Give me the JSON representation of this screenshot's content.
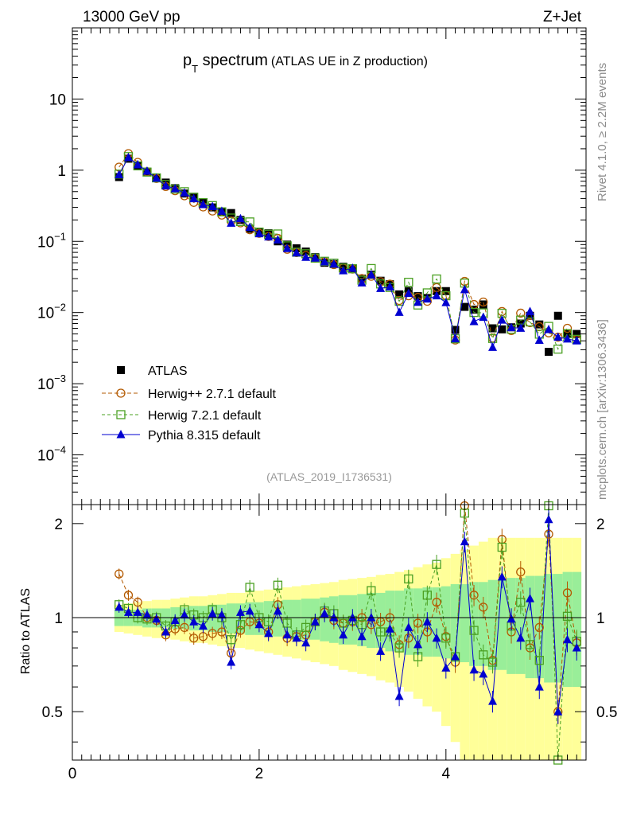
{
  "header": {
    "left": "13000 GeV pp",
    "right": "Z+Jet"
  },
  "title": {
    "main": "p",
    "sub": "T",
    "rest": " spectrum",
    "paren": "(ATLAS UE in Z production)"
  },
  "side": {
    "rivet": "Rivet 4.1.0, ≥ 2.2M events",
    "mcplots": "mcplots.cern.ch [arXiv:1306.3436]"
  },
  "annotation": "(ATLAS_2019_I1736531)",
  "ratio_ylabel": "Ratio to ATLAS",
  "chart_data": {
    "type": "scatter",
    "xlim": [
      0,
      5.5
    ],
    "ylim_main": [
      2e-05,
      100
    ],
    "ylim_ratio": [
      0.35,
      2.3
    ],
    "main_ticks": [
      {
        "value": 10,
        "base": "10",
        "exp": ""
      },
      {
        "value": 1,
        "base": "1",
        "exp": ""
      },
      {
        "value": 0.1,
        "base": "10",
        "exp": "−1"
      },
      {
        "value": 0.01,
        "base": "10",
        "exp": "−2"
      },
      {
        "value": 0.001,
        "base": "10",
        "exp": "−3"
      },
      {
        "value": 0.0001,
        "base": "10",
        "exp": "−4"
      }
    ],
    "ratio_ticks": [
      {
        "value": 0.5,
        "label": "0.5"
      },
      {
        "value": 1,
        "label": "1"
      },
      {
        "value": 2,
        "label": "2"
      }
    ],
    "x_ticks": [
      {
        "value": 0,
        "label": "0"
      },
      {
        "value": 2,
        "label": "2"
      },
      {
        "value": 4,
        "label": "4"
      }
    ],
    "x": [
      0.5,
      0.6,
      0.7,
      0.8,
      0.9,
      1.0,
      1.1,
      1.2,
      1.3,
      1.4,
      1.5,
      1.6,
      1.7,
      1.8,
      1.9,
      2.0,
      2.1,
      2.2,
      2.3,
      2.4,
      2.5,
      2.6,
      2.7,
      2.8,
      2.9,
      3.0,
      3.1,
      3.2,
      3.3,
      3.4,
      3.5,
      3.6,
      3.7,
      3.8,
      3.9,
      4.0,
      4.1,
      4.2,
      4.3,
      4.4,
      4.5,
      4.6,
      4.7,
      4.8,
      4.9,
      5.0,
      5.1,
      5.2,
      5.3,
      5.4
    ],
    "data": [
      0.8,
      1.45,
      1.15,
      0.95,
      0.78,
      0.67,
      0.56,
      0.47,
      0.41,
      0.35,
      0.3,
      0.26,
      0.25,
      0.2,
      0.15,
      0.135,
      0.13,
      0.1,
      0.09,
      0.08,
      0.072,
      0.06,
      0.05,
      0.048,
      0.044,
      0.042,
      0.03,
      0.034,
      0.028,
      0.025,
      0.018,
      0.02,
      0.017,
      0.016,
      0.02,
      0.02,
      0.0057,
      0.012,
      0.011,
      0.013,
      0.006,
      0.0058,
      0.0062,
      0.007,
      0.009,
      0.0068,
      0.0028,
      0.009,
      0.005,
      0.005
    ],
    "band_inner": [
      0.06,
      0.06,
      0.06,
      0.07,
      0.07,
      0.07,
      0.08,
      0.08,
      0.09,
      0.09,
      0.1,
      0.1,
      0.11,
      0.11,
      0.12,
      0.12,
      0.13,
      0.13,
      0.14,
      0.14,
      0.15,
      0.15,
      0.16,
      0.17,
      0.18,
      0.18,
      0.19,
      0.2,
      0.2,
      0.22,
      0.22,
      0.24,
      0.24,
      0.25,
      0.25,
      0.26,
      0.28,
      0.28,
      0.3,
      0.3,
      0.32,
      0.32,
      0.34,
      0.34,
      0.36,
      0.36,
      0.38,
      0.38,
      0.4,
      0.4
    ],
    "band_outer": [
      0.1,
      0.11,
      0.12,
      0.13,
      0.14,
      0.14,
      0.15,
      0.16,
      0.17,
      0.17,
      0.18,
      0.19,
      0.2,
      0.2,
      0.21,
      0.22,
      0.23,
      0.24,
      0.25,
      0.26,
      0.27,
      0.28,
      0.29,
      0.3,
      0.32,
      0.33,
      0.34,
      0.35,
      0.37,
      0.38,
      0.4,
      0.42,
      0.45,
      0.48,
      0.5,
      0.55,
      0.6,
      0.65,
      0.7,
      0.75,
      0.8,
      0.8,
      0.8,
      0.8,
      0.8,
      0.8,
      0.8,
      0.8,
      0.8,
      0.8
    ],
    "series": [
      {
        "name": "ATLAS",
        "marker": "square",
        "color": "#000000",
        "ratio": []
      },
      {
        "name": "Herwig++ 2.7.1 default",
        "marker": "circle",
        "color": "#b35900",
        "ratio": [
          1.38,
          1.18,
          1.12,
          1.0,
          0.98,
          0.88,
          0.92,
          0.93,
          0.86,
          0.87,
          0.89,
          0.9,
          0.77,
          0.91,
          0.97,
          0.96,
          0.9,
          1.1,
          0.86,
          0.87,
          0.88,
          0.97,
          1.04,
          0.98,
          0.96,
          0.97,
          1.0,
          0.95,
          0.97,
          1.0,
          0.82,
          0.86,
          0.96,
          0.9,
          1.12,
          0.87,
          0.72,
          2.28,
          1.18,
          1.08,
          0.73,
          1.78,
          0.9,
          1.4,
          0.8,
          0.93,
          1.85,
          0.5,
          1.2,
          0.83
        ]
      },
      {
        "name": "Herwig 7.2.1 default",
        "marker": "square-open",
        "color": "#4aa022",
        "ratio": [
          1.1,
          1.07,
          1.0,
          0.99,
          1.0,
          0.94,
          0.97,
          1.06,
          1.02,
          1.0,
          1.06,
          1.0,
          0.85,
          0.95,
          1.25,
          1.0,
          0.97,
          1.27,
          0.96,
          0.88,
          0.93,
          0.97,
          1.05,
          1.03,
          0.96,
          0.98,
          0.95,
          1.22,
          0.9,
          0.9,
          0.8,
          1.33,
          0.75,
          1.18,
          1.48,
          0.86,
          0.75,
          2.16,
          0.91,
          0.76,
          0.72,
          1.68,
          0.94,
          1.12,
          0.82,
          0.73,
          2.28,
          0.34,
          1.01,
          0.84
        ]
      },
      {
        "name": "Pythia 8.315 default",
        "marker": "triangle",
        "color": "#0000d0",
        "ratio": [
          1.08,
          1.04,
          1.04,
          1.02,
          0.99,
          0.9,
          0.98,
          1.02,
          0.97,
          0.94,
          1.03,
          1.02,
          0.72,
          1.04,
          1.05,
          0.95,
          0.89,
          1.05,
          0.88,
          0.86,
          0.83,
          0.97,
          1.03,
          1.0,
          0.88,
          1.0,
          0.87,
          1.0,
          0.78,
          0.92,
          0.56,
          0.93,
          0.82,
          0.97,
          0.86,
          0.69,
          0.75,
          1.75,
          0.68,
          0.66,
          0.54,
          1.35,
          0.99,
          0.86,
          1.15,
          0.6,
          2.06,
          0.5,
          0.85,
          0.8
        ]
      }
    ]
  }
}
